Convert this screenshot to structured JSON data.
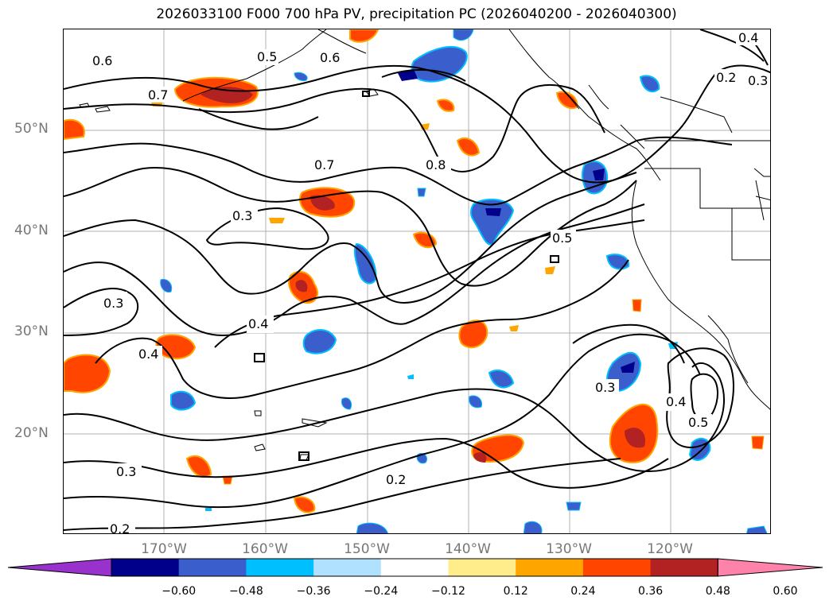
{
  "title": "2026033100 F000 700 hPa PV, precipitation PC (2026040200 - 2026040300)",
  "lat_labels": [
    "50°N",
    "40°N",
    "30°N",
    "20°N"
  ],
  "lon_labels": [
    "170°W",
    "160°W",
    "150°W",
    "140°W",
    "130°W",
    "120°W"
  ],
  "contour_labels": [
    "0.6",
    "0.7",
    "0.5",
    "0.6",
    "0.4",
    "0.2",
    "0.3",
    "0.7",
    "0.8",
    "0.3",
    "0.5",
    "0.3",
    "0.4",
    "0.4",
    "0.3",
    "0.4",
    "0.5",
    "0.3",
    "0.2",
    "0.2"
  ],
  "colorbar": {
    "ticks": [
      "−0.60",
      "−0.48",
      "−0.36",
      "−0.24",
      "−0.12",
      "0.12",
      "0.24",
      "0.36",
      "0.48",
      "0.60"
    ],
    "colors": [
      "#9932cc",
      "#00008b",
      "#3a5fcd",
      "#00bfff",
      "#b0e2ff",
      "#ffffff",
      "#ffec8b",
      "#ffa500",
      "#ff4500",
      "#b22222",
      "#ff82ab"
    ],
    "extend": "both"
  }
}
